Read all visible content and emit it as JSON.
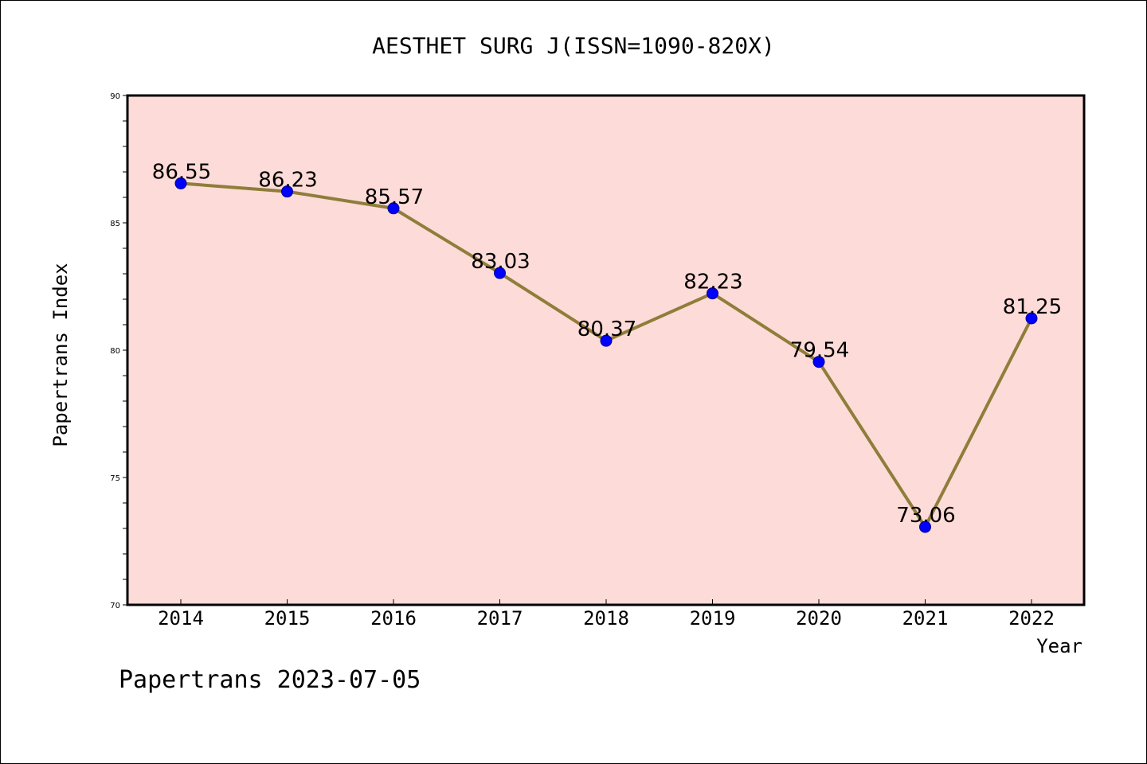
{
  "footer": {
    "text": "Papertrans 2023-07-05"
  },
  "chart_data": {
    "type": "line",
    "title": "AESTHET SURG J(ISSN=1090-820X)",
    "xlabel": "Year",
    "ylabel": "Papertrans Index",
    "categories": [
      "2014",
      "2015",
      "2016",
      "2017",
      "2018",
      "2019",
      "2020",
      "2021",
      "2022"
    ],
    "values": [
      86.55,
      86.23,
      85.57,
      83.03,
      80.37,
      82.23,
      79.54,
      73.06,
      81.25
    ],
    "data_labels": [
      "86.55",
      "86.23",
      "85.57",
      "83.03",
      "80.37",
      "82.23",
      "79.54",
      "73.06",
      "81.25"
    ],
    "ylim": [
      70,
      90
    ],
    "yticks": [
      70,
      75,
      80,
      85,
      90
    ],
    "grid": false,
    "colors": {
      "plot_background": "#fddbd8",
      "line": "#8f7d3a",
      "marker": "#0000ff"
    }
  }
}
